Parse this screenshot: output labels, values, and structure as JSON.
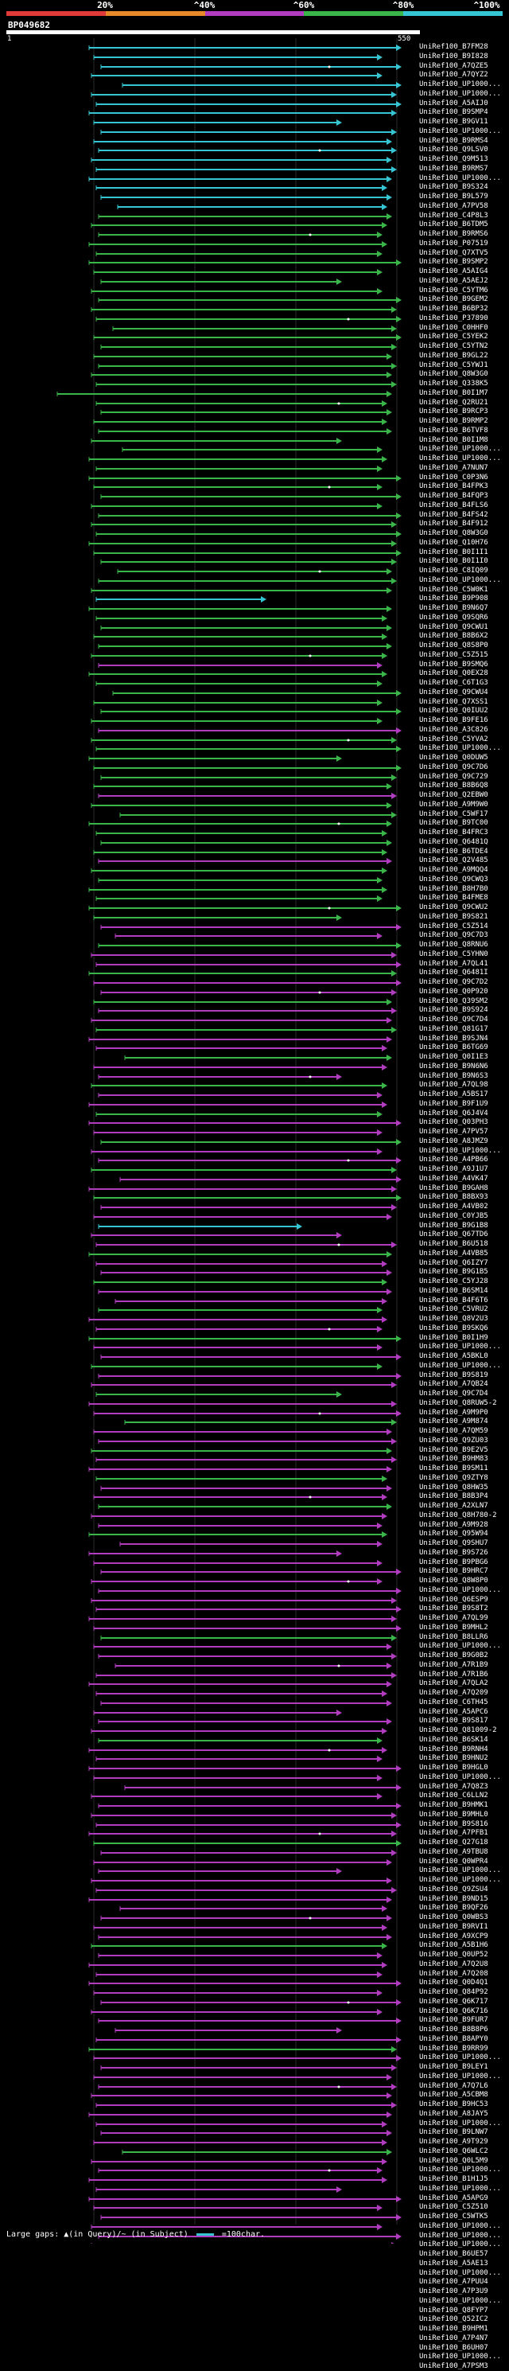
{
  "scale": {
    "labels": [
      "20%",
      "^40%",
      "^60%",
      "^80%",
      "^100%"
    ],
    "colors": {
      "red": "#e03a3a",
      "orange": "#e8892a",
      "purple": "#b23cc0",
      "green": "#39b54a",
      "cyan": "#36c5d2"
    }
  },
  "query": {
    "id": "BP049682",
    "start": "1",
    "end": "550"
  },
  "hit_prefix": "UniRef100_",
  "hit_ids": [
    "B7FM28",
    "B9I828",
    "A7QZE5",
    "A7QYZ2",
    "UP1000...",
    "UP1000...",
    "A5AIJ0",
    "B9SMP4",
    "B9GV11",
    "UP1000...",
    "B9RMS4",
    "Q9LSV0",
    "Q9M513",
    "B9RMS7",
    "UP1000...",
    "B9S324",
    "B9L579",
    "A7PV58",
    "C4P8L3",
    "B6TDM5",
    "B9RMS6",
    "P07519",
    "Q7XTV5",
    "B9SMP2",
    "A5AIG4",
    "A5AEJ2",
    "C5YTM6",
    "B9GEM2",
    "B6BP32",
    "P37890",
    "C0HHF0",
    "C5YEK2",
    "C5YTN2",
    "B9GL22",
    "C5YWJ1",
    "Q8W3G0",
    "Q338K5",
    "B0I1M7",
    "Q2RU21",
    "B9RCP3",
    "B9RMP2",
    "B6TVF8",
    "B0I1M8",
    "UP1000...",
    "UP1000...",
    "A7NUN7",
    "C0P3N6",
    "B4FPK3",
    "B4FQP3",
    "B4FLS6",
    "B4FS42",
    "B4F912",
    "Q8W3G0",
    "Q10H76",
    "B0I1I1",
    "B0I1I0",
    "C8IQ09",
    "UP1000...",
    "C5W0K1",
    "B9P908",
    "B9N6Q7",
    "Q9SQR6",
    "Q9CWU1",
    "B8B6X2",
    "Q8S8P0",
    "C5Z515",
    "B9SMQ6",
    "Q0EX28",
    "C6T1G3",
    "Q9CWU4",
    "Q7XSS1",
    "Q0IUU2",
    "B9FE16",
    "A3C826",
    "C5YVA2",
    "UP1000...",
    "Q0DUW5",
    "Q9C7D6",
    "Q9C729",
    "B8B6Q8",
    "Q2EBW0",
    "A9M9W0",
    "C5WF17",
    "B9TC00",
    "B4FRC3",
    "Q6481Q",
    "B6TDE4",
    "Q2V485",
    "A9MQQ4",
    "Q9CWQ3",
    "B8H7B0",
    "B4FME8",
    "Q9CWU2",
    "B9S821",
    "C5Z514",
    "Q9C7D3",
    "Q8RNU6",
    "C5YHN0",
    "A7QL41",
    "Q6481I",
    "Q9C7D2",
    "Q0P920",
    "Q39SM2",
    "B9S924",
    "Q9C7D4",
    "Q81G17",
    "B9SJN4",
    "B6TG69",
    "Q0I1E3",
    "B9N6N6",
    "B9N6S3",
    "A7QL98",
    "A5BS17",
    "B9F1U9",
    "Q6J4V4",
    "Q03PH3",
    "A7PV57",
    "A8JMZ9",
    "UP1000...",
    "A4PB66",
    "A9J1U7",
    "A4VK47",
    "B9GAH8",
    "B8BX93",
    "A4VB02",
    "C0YJB5",
    "B9G1B8",
    "Q67TD6",
    "B6U518",
    "A4VB85",
    "Q6IZY7",
    "B9G1B5",
    "C5YJ28",
    "B6SM14",
    "B4F6T6",
    "C5VRU2",
    "Q8V2U3",
    "B9SKQ6",
    "B0I1H9",
    "UP1000...",
    "A5BKL0",
    "UP1000...",
    "B9S819",
    "A7QB24",
    "Q9C7D4",
    "Q8RUW5-2",
    "A9M9P0",
    "A9M874",
    "A7QM59",
    "Q9ZU03",
    "B9E2V5",
    "B9HM83",
    "B9SM11",
    "Q9ZTY8",
    "Q8HW35",
    "B8B3P4",
    "A2XLN7",
    "Q8H780-2",
    "A9M928",
    "Q95W94",
    "Q9SHU7",
    "B9S726",
    "B9PBG6",
    "B9HRC7",
    "Q8W8P0",
    "UP1000...",
    "Q6ESP9",
    "B9S8T2",
    "A7QL99",
    "B9MHL2",
    "B8LLR6",
    "UP1000...",
    "B9G0B2",
    "A7R1B9",
    "A7R1B6",
    "A7QLA2",
    "A7Q209",
    "C6TH45",
    "A5APC6",
    "B9S817",
    "Q81009-2",
    "B6SK14",
    "B9RNH4",
    "B9HNU2",
    "B9HGL0",
    "UP1000...",
    "A7Q8Z3",
    "C6LLN2",
    "B9HMK1",
    "B9MHL0",
    "B9S816",
    "A7PFB1",
    "Q27G18",
    "A9TBU8",
    "Q0WPR4",
    "UP1000...",
    "UP1000...",
    "Q9ZSU4",
    "B9ND15",
    "B9QF26",
    "Q0WBS3",
    "B9RVI1",
    "A9XCP9",
    "A5B1H6",
    "Q0UP52",
    "A7Q2U8",
    "A7Q208",
    "Q0D4Q1",
    "Q84P92",
    "Q6K717",
    "Q6K716",
    "B9FUR7",
    "B8B8P6",
    "B8APY0",
    "B9RR99",
    "UP1000...",
    "B9LEY1",
    "UP1000...",
    "A7Q7L6",
    "A5CBM8",
    "B9HC53",
    "A8JAY5",
    "UP1000...",
    "B9LNW7",
    "A9T929",
    "Q6WLC2",
    "Q0L5M9",
    "UP1000...",
    "B1H1J5",
    "UP1000...",
    "A5APG9",
    "C5Z510",
    "C5WTK5",
    "UP1000...",
    "UP1000...",
    "UP1000...",
    "B6UE57",
    "A5AE13",
    "UP1000...",
    "A7PUU4",
    "A7P3U9",
    "UP1000...",
    "Q8FYP7",
    "Q52IC2",
    "B9HPM1",
    "A7P4N7",
    "B6UH07",
    "UP1000...",
    "A7PSM3"
  ],
  "footer": {
    "text": "Large gaps: ▲(in Query)/~ (in Subject)",
    "scale_text": "=100char."
  }
}
